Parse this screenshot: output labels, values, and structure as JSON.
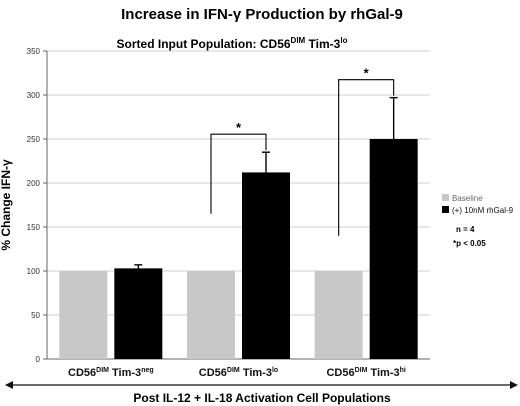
{
  "chart_data": {
    "type": "bar",
    "title": "Increase in IFN-γ Production by rhGal-9",
    "subtitle": {
      "prefix": "Sorted Input Population: CD56",
      "sup1": "DIM",
      "mid": " Tim-3",
      "sup2": "lo"
    },
    "ylabel": "% Change IFN-γ",
    "xlabel": "Post IL-12 + IL-18 Activation Cell Populations",
    "ylim": [
      0,
      350
    ],
    "yticks": [
      0,
      50,
      100,
      150,
      200,
      250,
      300,
      350
    ],
    "ytick_labels": [
      "0",
      "50",
      "100",
      "150",
      "200",
      "250",
      "300",
      "350"
    ],
    "grid": true,
    "categories": [
      {
        "base": "CD56",
        "sup1": "DIM",
        "mid": " Tim-3",
        "sup2": "neg"
      },
      {
        "base": "CD56",
        "sup1": "DIM",
        "mid": " Tim-3",
        "sup2": "lo"
      },
      {
        "base": "CD56",
        "sup1": "DIM",
        "mid": " Tim-3",
        "sup2": "hi"
      }
    ],
    "series": [
      {
        "name": "Baseline",
        "color": "#c8c8c8",
        "values": [
          100,
          100,
          100
        ],
        "errors": null
      },
      {
        "name": "(+) 10nM rhGal-9",
        "color": "#000000",
        "values": [
          103,
          212,
          250
        ],
        "errors": [
          4,
          23,
          47
        ]
      }
    ],
    "significance": [
      {
        "category_index": 1,
        "label": "*",
        "bracket_bottom": 165
      },
      {
        "category_index": 2,
        "label": "*",
        "bracket_bottom": 140
      }
    ],
    "legend_position": "right",
    "annotations": [
      "n = 4",
      "*p < 0.05"
    ]
  }
}
